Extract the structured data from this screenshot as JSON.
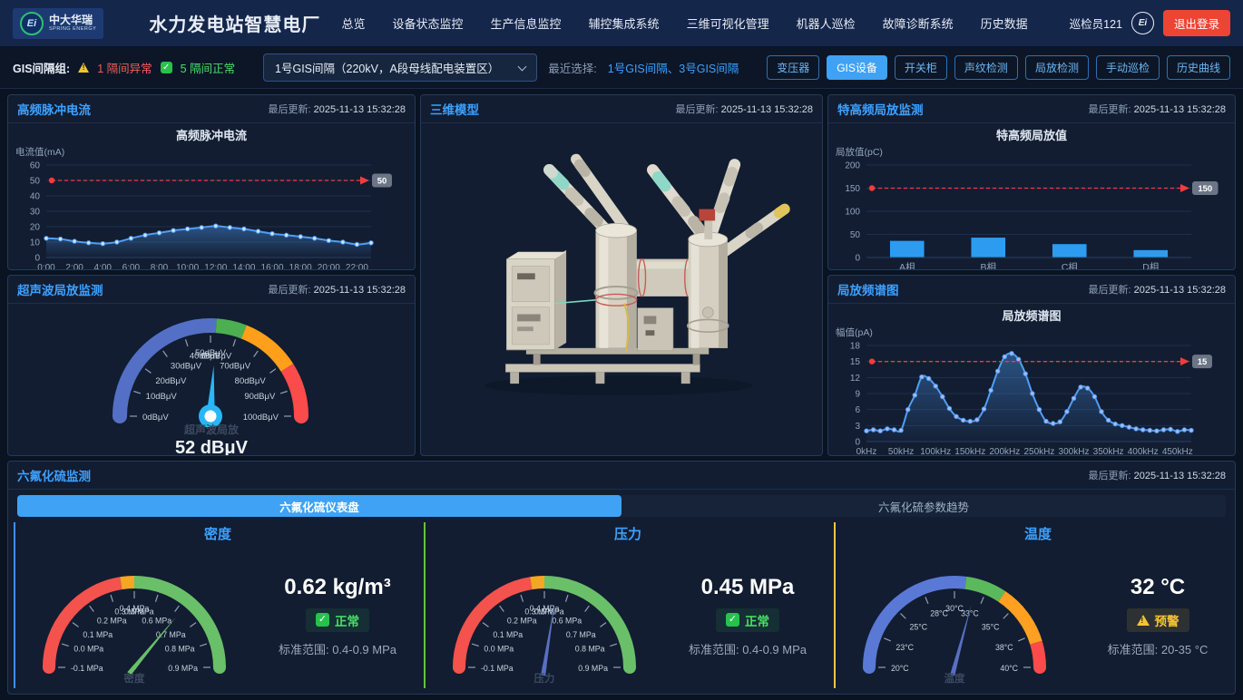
{
  "header": {
    "logo": {
      "brand": "中大华瑞",
      "sub": "SPRING ENERGY",
      "monogram": "Ei"
    },
    "title": "水力发电站智慧电厂",
    "nav": [
      "总览",
      "设备状态监控",
      "生产信息监控",
      "辅控集成系统",
      "三维可视化管理",
      "机器人巡检",
      "故障诊断系统",
      "历史数据"
    ],
    "user": "巡检员121",
    "logout": "退出登录"
  },
  "filter_bar": {
    "group_label": "GIS间隔组:",
    "abnormal": "1 隔间异常",
    "normal": "5 隔间正常",
    "check_glyph": "✓",
    "select_value": "1号GIS间隔（220kV，A段母线配电装置区）",
    "recent_label": "最近选择:",
    "recent_links": "1号GIS间隔、3号GIS间隔",
    "buttons": [
      {
        "label": "变压器",
        "active": false
      },
      {
        "label": "GIS设备",
        "active": true
      },
      {
        "label": "开关柜",
        "active": false
      },
      {
        "label": "声纹检测",
        "active": false
      },
      {
        "label": "局放检测",
        "active": false
      },
      {
        "label": "手动巡检",
        "active": false
      },
      {
        "label": "历史曲线",
        "active": false
      }
    ]
  },
  "updated_label": "最后更新:",
  "updated_time": "2025-11-13 15:32:28",
  "panels": {
    "hf": {
      "title": "高频脉冲电流"
    },
    "model3d": {
      "title": "三维模型"
    },
    "uhf": {
      "title": "特高频局放监测"
    },
    "ultrasonic": {
      "title": "超声波局放监测",
      "sub_label": "超声波局放",
      "value": "52 dBμV"
    },
    "spectrum": {
      "title": "局放频谱图"
    },
    "sf6": {
      "title": "六氟化硫监测",
      "tabs": [
        {
          "label": "六氟化硫仪表盘"
        },
        {
          "label": "六氟化硫参数趋势"
        }
      ],
      "cards": [
        {
          "name": "密度",
          "value": "0.62 kg/m³",
          "status": "正常",
          "range": "标准范围: 0.4-0.9 MPa"
        },
        {
          "name": "压力",
          "value": "0.45 MPa",
          "status": "正常",
          "range": "标准范围: 0.4-0.9 MPa"
        },
        {
          "name": "温度",
          "value": "32 °C",
          "status": "预警",
          "range": "标准范围: 20-35 °C"
        }
      ]
    }
  },
  "colors": {
    "accent_blue": "#3da1ff",
    "threshold_red": "#f23c3c",
    "line_blue": "#4f9ef7",
    "bar_blue": "#2d9cf0",
    "normal_green": "#4ce06a",
    "warning_yellow": "#f5c531"
  },
  "chart_data": [
    {
      "id": "hf",
      "type": "line",
      "title": "高频脉冲电流",
      "ylabel": "电流值(mA)",
      "ylim": [
        0,
        60
      ],
      "yticks": [
        0,
        10,
        20,
        30,
        40,
        50,
        60
      ],
      "values": [
        12.5,
        12,
        10.5,
        9.5,
        9,
        10,
        12.5,
        14.5,
        16,
        17.5,
        18.5,
        19.5,
        20.5,
        19.5,
        18.5,
        17,
        15.5,
        14.5,
        13.5,
        12.5,
        11,
        10,
        8.5,
        9.5
      ],
      "xticks": {
        "every": 2,
        "labels": [
          "0:00",
          "2:00",
          "4:00",
          "6:00",
          "8:00",
          "10:00",
          "12:00",
          "14:00",
          "16:00",
          "18:00",
          "20:00",
          "22:00"
        ]
      },
      "threshold": {
        "value": 50,
        "label": "50"
      },
      "color": "#4f9ef7",
      "marker": "#cfe4ff"
    },
    {
      "id": "uhf",
      "type": "bar",
      "title": "特高频局放值",
      "ylabel": "局放值(pC)",
      "ylim": [
        0,
        200
      ],
      "yticks": [
        0,
        50,
        100,
        150,
        200
      ],
      "categories": [
        "A相",
        "B相",
        "C相",
        "D相"
      ],
      "values": [
        36,
        43,
        29,
        16
      ],
      "threshold": {
        "value": 150,
        "label": "150"
      },
      "color": "#2d9cf0"
    },
    {
      "id": "spectrum",
      "type": "line",
      "title": "局放频谱图",
      "ylabel": "幅值(pA)",
      "ylim": [
        0,
        18
      ],
      "yticks": [
        0,
        3,
        6,
        9,
        12,
        15,
        18
      ],
      "values": [
        2,
        2.2,
        2,
        2.4,
        2.2,
        2.1,
        6,
        8.7,
        12.1,
        11.8,
        10.4,
        8.4,
        6.2,
        4.7,
        4,
        3.8,
        4.1,
        6.1,
        9.6,
        13.2,
        15.9,
        16.5,
        15.4,
        12.7,
        9,
        6,
        3.8,
        3.4,
        3.7,
        5.6,
        8.1,
        10.2,
        10,
        8.4,
        5.6,
        4,
        3.3,
        3,
        2.7,
        2.4,
        2.2,
        2.1,
        2,
        2.2,
        2.3,
        1.9,
        2.2,
        2.1
      ],
      "xticks": {
        "every": 5,
        "labels": [
          "0kHz",
          "50kHz",
          "100kHz",
          "150kHz",
          "200kHz",
          "250kHz",
          "300kHz",
          "350kHz",
          "400kHz",
          "450kHz"
        ]
      },
      "threshold": {
        "value": 15,
        "label": "15"
      },
      "color": "#4f9ef7",
      "marker": "#aab8f2"
    },
    {
      "id": "ultrasonic",
      "type": "gauge",
      "value": 52,
      "unit": "dBμV",
      "ticks": [
        "0dBμV",
        "10dBμV",
        "20dBμV",
        "30dBμV",
        "40dBμV",
        "50dBμV",
        "60dBμV",
        "70dBμV",
        "80dBμV",
        "90dBμV",
        "100dBμV"
      ],
      "segments": [
        {
          "to": 0.52,
          "color": "#5470c6"
        },
        {
          "to": 0.62,
          "color": "#4caf50"
        },
        {
          "to": 0.82,
          "color": "#ff9f1a"
        },
        {
          "to": 1,
          "color": "#fb4b4b"
        }
      ],
      "value_frac": 0.52,
      "needle_color": "#29b6f6",
      "needle_w": 5.5,
      "hub": true,
      "tick_font": 9.5
    },
    {
      "id": "sf6_density",
      "type": "gauge",
      "axis_label": "密度",
      "ticks": [
        "-0.1 MPa",
        "0.0 MPa",
        "0.1 MPa",
        "0.2 MPa",
        "0.3 MPa",
        "0.4 MPa",
        "0.5 MPa",
        "0.6 MPa",
        "0.7 MPa",
        "0.8 MPa",
        "0.9 MPa"
      ],
      "segments": [
        {
          "to": 0.45,
          "color": "#f4524d"
        },
        {
          "to": 0.5,
          "color": "#f5a623"
        },
        {
          "to": 1,
          "color": "#6abf69"
        }
      ],
      "value_frac": 0.72,
      "needle_color": "#6abf69",
      "needle_w": 2.6,
      "hub": false,
      "tick_font": 8.8
    },
    {
      "id": "sf6_pressure",
      "type": "gauge",
      "axis_label": "压力",
      "ticks": [
        "-0.1 MPa",
        "0.0 MPa",
        "0.1 MPa",
        "0.2 MPa",
        "0.3 MPa",
        "0.4 MPa",
        "0.5 MPa",
        "0.6 MPa",
        "0.7 MPa",
        "0.8 MPa",
        "0.9 MPa"
      ],
      "segments": [
        {
          "to": 0.45,
          "color": "#f4524d"
        },
        {
          "to": 0.5,
          "color": "#f5a623"
        },
        {
          "to": 1,
          "color": "#6abf69"
        }
      ],
      "value_frac": 0.55,
      "needle_color": "#5a6fc0",
      "needle_w": 2.6,
      "hub": false,
      "tick_font": 8.8
    },
    {
      "id": "sf6_temp",
      "type": "gauge",
      "axis_label": "温度",
      "ticks": [
        "20°C",
        "23°C",
        "25°C",
        "28°C",
        "30°C",
        "33°C",
        "35°C",
        "38°C",
        "40°C"
      ],
      "segments": [
        {
          "to": 0.5417,
          "color": "#5a79d6"
        },
        {
          "to": 0.6875,
          "color": "#5cb85c"
        },
        {
          "to": 0.9063,
          "color": "#ffa022"
        },
        {
          "to": 1,
          "color": "#fb4b4b"
        }
      ],
      "value_frac": 0.5833,
      "needle_color": "#5a6fc0",
      "needle_w": 2.6,
      "hub": false,
      "tick_font": 8.8
    }
  ],
  "card_accents": [
    "#3e8ef7",
    "#67c23a",
    "#f5c63c"
  ]
}
